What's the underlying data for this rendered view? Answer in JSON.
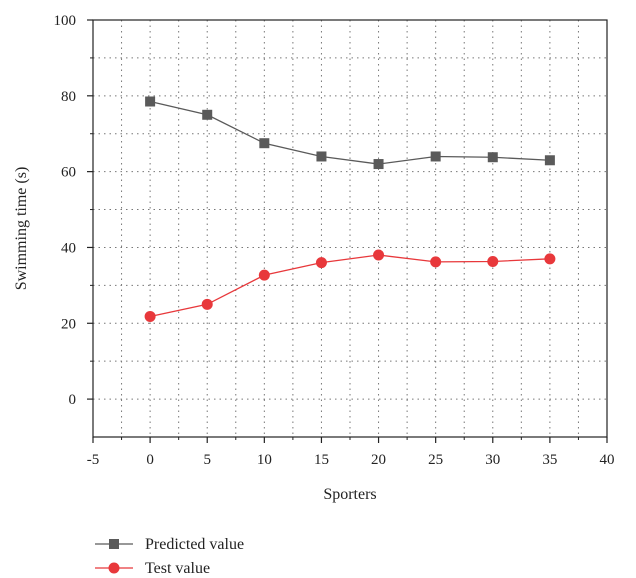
{
  "chart_data": {
    "type": "line",
    "xlabel": "Sporters",
    "ylabel": "Swimming time (s)",
    "xlim": [
      -5,
      40
    ],
    "ylim": [
      -10,
      100
    ],
    "xticks": [
      "-5",
      "0",
      "5",
      "10",
      "15",
      "20",
      "25",
      "30",
      "35",
      "40"
    ],
    "yticks": [
      "0",
      "20",
      "40",
      "60",
      "80",
      "100"
    ],
    "grid": true,
    "legend_position": "bottom-left",
    "x": [
      0,
      5,
      10,
      15,
      20,
      25,
      30,
      35
    ],
    "series": [
      {
        "name": "Predicted value",
        "marker": "square",
        "color": "#5a5a5a",
        "values": [
          78.5,
          75,
          67.5,
          64,
          62,
          64,
          63.8,
          63
        ]
      },
      {
        "name": "Test value",
        "marker": "circle",
        "color": "#e8383b",
        "values": [
          21.8,
          25,
          32.7,
          36,
          38,
          36.2,
          36.3,
          37
        ]
      }
    ]
  }
}
